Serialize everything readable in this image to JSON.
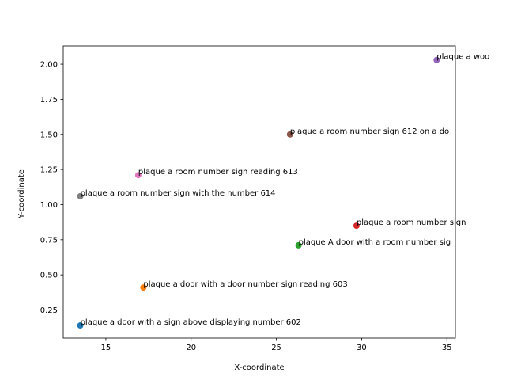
{
  "chart_data": {
    "type": "scatter",
    "title": "",
    "xlabel": "X-coordinate",
    "ylabel": "Y-coordinate",
    "xlim": [
      12.5,
      35.5
    ],
    "ylim": [
      0.05,
      2.13
    ],
    "xticks": [
      15,
      20,
      25,
      30,
      35
    ],
    "yticks": [
      0.25,
      0.5,
      0.75,
      1.0,
      1.25,
      1.5,
      1.75,
      2.0
    ],
    "xtick_labels": [
      "15",
      "20",
      "25",
      "30",
      "35"
    ],
    "ytick_labels": [
      "0.25",
      "0.50",
      "0.75",
      "1.00",
      "1.25",
      "1.50",
      "1.75",
      "2.00"
    ],
    "grid": false,
    "legend": "none",
    "points": [
      {
        "x": 13.5,
        "y": 0.14,
        "label": "plaque a door with a sign above displaying number 602",
        "color": "#1f77b4"
      },
      {
        "x": 17.2,
        "y": 0.41,
        "label": "plaque a door with a door number sign reading 603",
        "color": "#ff7f0e"
      },
      {
        "x": 26.3,
        "y": 0.71,
        "label": "plaque A door with a room number sig",
        "color": "#2ca02c"
      },
      {
        "x": 29.7,
        "y": 0.85,
        "label": "plaque a room number sign",
        "color": "#d62728"
      },
      {
        "x": 34.4,
        "y": 2.03,
        "label": "plaque a woo",
        "color": "#9467bd"
      },
      {
        "x": 25.8,
        "y": 1.5,
        "label": "plaque a room number sign 612 on a do",
        "color": "#8c564b"
      },
      {
        "x": 16.9,
        "y": 1.21,
        "label": "plaque a room number sign reading 613",
        "color": "#e377c2"
      },
      {
        "x": 13.5,
        "y": 1.06,
        "label": "plaque a room number sign with the number 614",
        "color": "#7f7f7f"
      }
    ]
  }
}
